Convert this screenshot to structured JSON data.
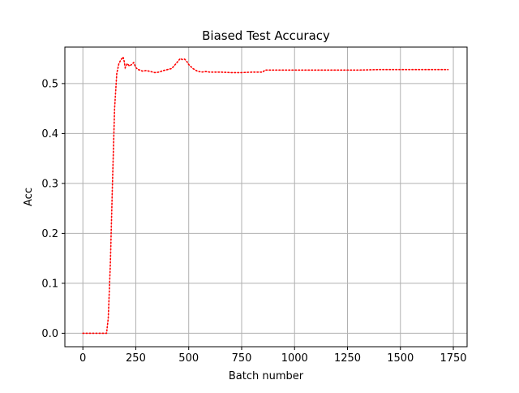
{
  "chart_data": {
    "type": "line",
    "title": "Biased Test Accuracy",
    "xlabel": "Batch number",
    "ylabel": "Acc",
    "xlim": [
      -85,
      1815
    ],
    "ylim": [
      -0.027,
      0.573
    ],
    "grid": true,
    "x_ticks": [
      0,
      250,
      500,
      750,
      1000,
      1250,
      1500,
      1750
    ],
    "x_tick_labels": [
      "0",
      "250",
      "500",
      "750",
      "1000",
      "1250",
      "1500",
      "1750"
    ],
    "y_ticks": [
      0.0,
      0.1,
      0.2,
      0.3,
      0.4,
      0.5
    ],
    "y_tick_labels": [
      "0.0",
      "0.1",
      "0.2",
      "0.3",
      "0.4",
      "0.5"
    ],
    "series": [
      {
        "color": "#ff0000",
        "line_style": "dotted",
        "x": [
          0,
          50,
          100,
          112,
          120,
          130,
          140,
          150,
          160,
          170,
          180,
          190,
          195,
          200,
          210,
          220,
          230,
          240,
          250,
          260,
          270,
          280,
          300,
          320,
          340,
          360,
          380,
          400,
          420,
          440,
          450,
          460,
          470,
          480,
          490,
          500,
          520,
          540,
          560,
          580,
          600,
          650,
          700,
          750,
          800,
          850,
          860,
          880,
          900,
          950,
          1000,
          1100,
          1200,
          1300,
          1400,
          1500,
          1600,
          1700,
          1725
        ],
        "y": [
          0.0,
          0.0,
          0.0,
          0.0,
          0.03,
          0.14,
          0.3,
          0.45,
          0.52,
          0.54,
          0.548,
          0.553,
          0.545,
          0.532,
          0.54,
          0.535,
          0.538,
          0.542,
          0.532,
          0.528,
          0.527,
          0.525,
          0.526,
          0.524,
          0.522,
          0.523,
          0.526,
          0.528,
          0.53,
          0.54,
          0.545,
          0.55,
          0.548,
          0.549,
          0.545,
          0.538,
          0.53,
          0.525,
          0.523,
          0.524,
          0.523,
          0.523,
          0.522,
          0.522,
          0.523,
          0.523,
          0.527,
          0.527,
          0.527,
          0.527,
          0.527,
          0.527,
          0.527,
          0.527,
          0.528,
          0.528,
          0.528,
          0.528,
          0.528
        ]
      }
    ]
  }
}
